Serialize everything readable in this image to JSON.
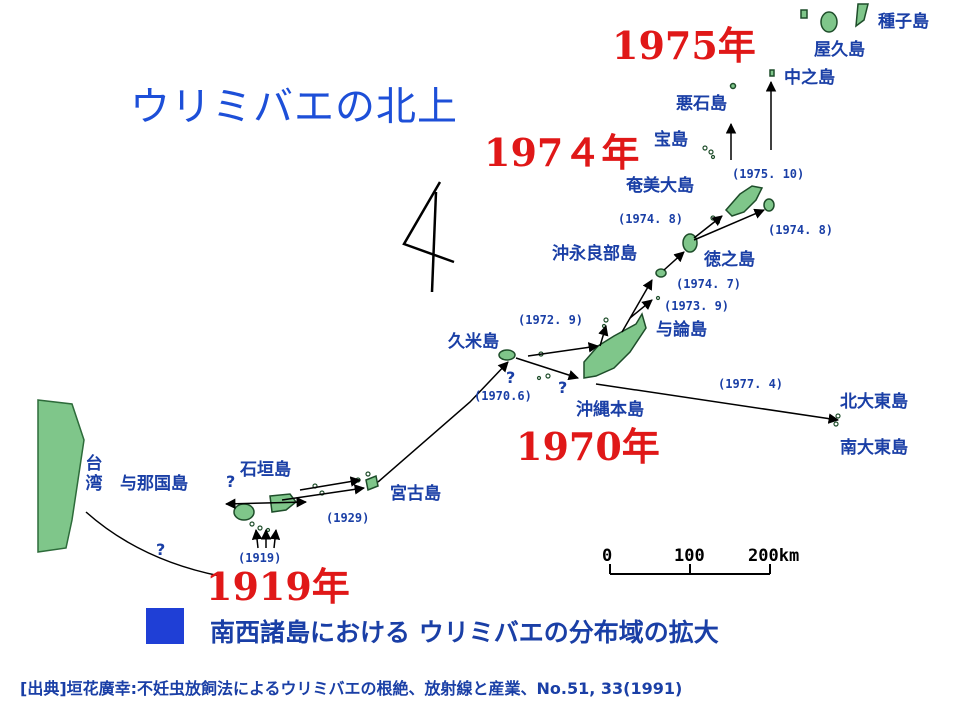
{
  "headline": "ウリミバエの北上",
  "years": {
    "y1975": "1975年",
    "y1974": "197４年",
    "y1970": "1970年",
    "y1919": "1919年"
  },
  "islands": {
    "tanegashima": "種子島",
    "yakushima": "屋久島",
    "nakanoshima": "中之島",
    "akusekijima": "悪石島",
    "takarajima": "宝島",
    "amami": "奄美大島",
    "okinoerabu": "沖永良部島",
    "tokunoshima": "徳之島",
    "yoron": "与論島",
    "kumejima": "久米島",
    "okinawa": "沖縄本島",
    "kitadaito": "北大東島",
    "minamidaito": "南大東島",
    "taiwan": "台湾",
    "yonaguni": "与那国島",
    "ishigaki": "石垣島",
    "miyako": "宮古島"
  },
  "dates": {
    "d1975_10": "(1975. 10)",
    "d1974_8_left": "(1974. 8)",
    "d1974_8_right": "(1974. 8)",
    "d1974_7": "(1974. 7)",
    "d1973_9": "(1973. 9)",
    "d1972_9": "(1972. 9)",
    "d1970_6": "(1970.6)",
    "d1977_4": "(1977. 4)",
    "d1929": "(1929)",
    "d1919": "(1919)"
  },
  "unknown_mark": "?",
  "scale": {
    "zero": "0",
    "mid": "100",
    "end": "200km"
  },
  "legend": "南西諸島における ウリミバエの分布域の拡大",
  "source": "[出典]垣花廣幸:不妊虫放飼法によるウリミバエの根絶、放射線と産業、No.51, 33(1991)",
  "colors": {
    "island_fill": "#7fc68a",
    "label_blue": "#1a3fa6",
    "year_red": "#e01818",
    "legend_box": "#1f3fd6"
  }
}
